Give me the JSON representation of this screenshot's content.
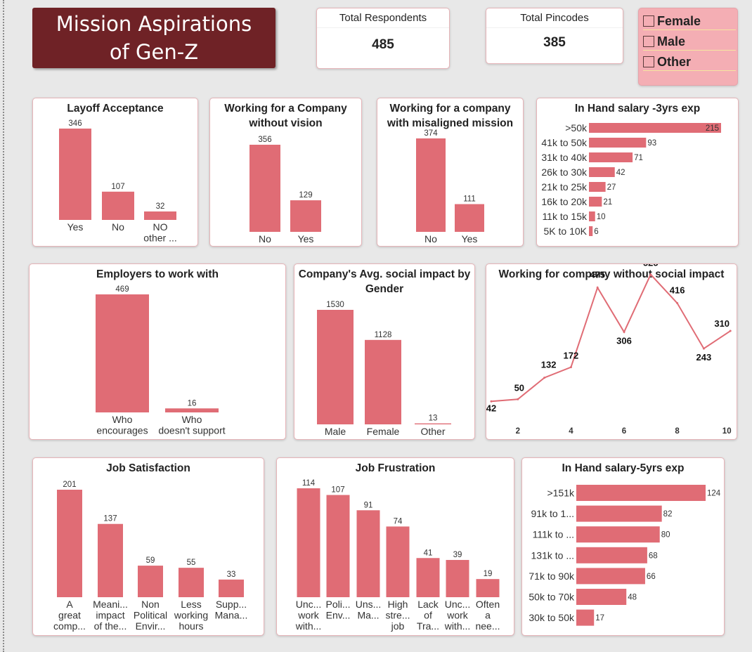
{
  "header": {
    "title": "Mission Aspirations of Gen-Z"
  },
  "kpis": [
    {
      "label": "Total Respondents",
      "value": "485"
    },
    {
      "label": "Total Pincodes",
      "value": "385"
    }
  ],
  "slicer": {
    "items": [
      "Female",
      "Male",
      "Other"
    ]
  },
  "colors": {
    "bar": "#e06c75",
    "banner": "#6f2226",
    "slicer": "#f4aeb4"
  },
  "chart_data": [
    {
      "id": "layoff",
      "type": "bar",
      "title": "Layoff Acceptance",
      "categories": [
        "Yes",
        "No",
        "NO other ..."
      ],
      "values": [
        346,
        107,
        32
      ]
    },
    {
      "id": "novision",
      "type": "bar",
      "title": "Working for a Company without vision",
      "categories": [
        "No",
        "Yes"
      ],
      "values": [
        356,
        129
      ]
    },
    {
      "id": "misaligned",
      "type": "bar",
      "title": "Working for a company with misaligned mission",
      "categories": [
        "No",
        "Yes"
      ],
      "values": [
        374,
        111
      ]
    },
    {
      "id": "salary3",
      "type": "bar",
      "orientation": "horizontal",
      "title": "In Hand salary -3yrs exp",
      "categories": [
        ">50k",
        "41k to 50k",
        "31k to 40k",
        "26k to 30k",
        "21k to 25k",
        "16k to 20k",
        "11k to 15k",
        "5K to 10K"
      ],
      "values": [
        215,
        93,
        71,
        42,
        27,
        21,
        10,
        6
      ]
    },
    {
      "id": "employers",
      "type": "bar",
      "title": "Employers to work with",
      "categories": [
        "Who encourages",
        "Who doesn't support"
      ],
      "values": [
        469,
        16
      ]
    },
    {
      "id": "impact",
      "type": "bar",
      "title": "Company's Avg. social impact by Gender",
      "categories": [
        "Male",
        "Female",
        "Other"
      ],
      "values": [
        1530,
        1128,
        13
      ]
    },
    {
      "id": "socialline",
      "type": "line",
      "title": "Working for company without social impact",
      "x": [
        1,
        2,
        3,
        4,
        5,
        6,
        7,
        8,
        9,
        10
      ],
      "values": [
        42,
        50,
        132,
        172,
        475,
        306,
        525,
        416,
        243,
        310
      ],
      "xticks": [
        2,
        4,
        6,
        8,
        10
      ]
    },
    {
      "id": "satisfaction",
      "type": "bar",
      "title": "Job Satisfaction",
      "categories": [
        "A great comp...",
        "Meani... impact of the...",
        "Non Political Envir...",
        "Less working hours",
        "Supp... Mana..."
      ],
      "values": [
        201,
        137,
        59,
        55,
        33
      ]
    },
    {
      "id": "frustration",
      "type": "bar",
      "title": "Job Frustration",
      "categories": [
        "Unc... work with...",
        "Poli... Env...",
        "Uns... Ma...",
        "High stre... job",
        "Lack of Tra...",
        "Unc... work with...",
        "Often a nee..."
      ],
      "values": [
        114,
        107,
        91,
        74,
        41,
        39,
        19
      ]
    },
    {
      "id": "salary5",
      "type": "bar",
      "orientation": "horizontal",
      "title": "In Hand salary-5yrs exp",
      "categories": [
        ">151k",
        "91k to 1...",
        "111k to ...",
        "131k to ...",
        "71k to 90k",
        "50k to 70k",
        "30k to 50k"
      ],
      "values": [
        124,
        82,
        80,
        68,
        66,
        48,
        17
      ]
    }
  ]
}
